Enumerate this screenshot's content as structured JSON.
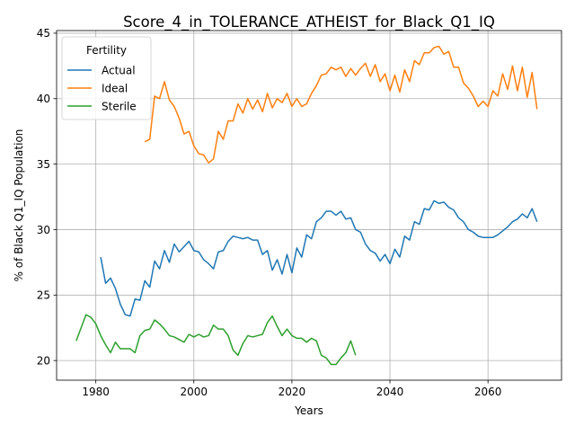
{
  "chart_data": {
    "type": "line",
    "title": "Score_4_in_TOLERANCE_ATHEIST_for_Black_Q1_IQ",
    "xlabel": "Years",
    "ylabel": "% of Black Q1_IQ Population",
    "xlim": [
      1972,
      2075
    ],
    "ylim": [
      18.5,
      45.2
    ],
    "xticks": [
      1980,
      2000,
      2020,
      2040,
      2060
    ],
    "yticks": [
      20,
      25,
      30,
      35,
      40,
      45
    ],
    "grid": true,
    "legend": {
      "title": "Fertility",
      "placement": "top-left"
    },
    "series": [
      {
        "name": "Actual",
        "color": "#1f77b4",
        "points": [
          [
            1981,
            27.9
          ],
          [
            1982,
            25.9
          ],
          [
            1983,
            26.3
          ],
          [
            1984,
            25.5
          ],
          [
            1985,
            24.3
          ],
          [
            1986,
            23.5
          ],
          [
            1987,
            23.4
          ],
          [
            1988,
            24.7
          ],
          [
            1989,
            24.6
          ],
          [
            1990,
            26.1
          ],
          [
            1991,
            25.6
          ],
          [
            1992,
            27.6
          ],
          [
            1993,
            27.0
          ],
          [
            1994,
            28.4
          ],
          [
            1995,
            27.5
          ],
          [
            1996,
            28.9
          ],
          [
            1997,
            28.3
          ],
          [
            1998,
            28.7
          ],
          [
            1999,
            29.1
          ],
          [
            2000,
            28.4
          ],
          [
            2001,
            28.3
          ],
          [
            2002,
            27.7
          ],
          [
            2003,
            27.4
          ],
          [
            2004,
            27.0
          ],
          [
            2005,
            28.3
          ],
          [
            2006,
            28.4
          ],
          [
            2007,
            29.1
          ],
          [
            2008,
            29.5
          ],
          [
            2009,
            29.4
          ],
          [
            2010,
            29.3
          ],
          [
            2011,
            29.4
          ],
          [
            2012,
            29.2
          ],
          [
            2013,
            29.2
          ],
          [
            2014,
            28.1
          ],
          [
            2015,
            28.4
          ],
          [
            2016,
            26.9
          ],
          [
            2017,
            27.7
          ],
          [
            2018,
            26.6
          ],
          [
            2019,
            28.1
          ],
          [
            2020,
            26.7
          ],
          [
            2021,
            28.6
          ],
          [
            2022,
            27.9
          ],
          [
            2023,
            29.6
          ],
          [
            2024,
            29.3
          ],
          [
            2025,
            30.6
          ],
          [
            2026,
            30.9
          ],
          [
            2027,
            31.4
          ],
          [
            2028,
            31.4
          ],
          [
            2029,
            31.1
          ],
          [
            2030,
            31.4
          ],
          [
            2031,
            30.8
          ],
          [
            2032,
            30.9
          ],
          [
            2033,
            30.0
          ],
          [
            2034,
            29.8
          ],
          [
            2035,
            28.9
          ],
          [
            2036,
            28.4
          ],
          [
            2037,
            28.2
          ],
          [
            2038,
            27.6
          ],
          [
            2039,
            28.1
          ],
          [
            2040,
            27.4
          ],
          [
            2041,
            28.5
          ],
          [
            2042,
            27.9
          ],
          [
            2043,
            29.5
          ],
          [
            2044,
            29.2
          ],
          [
            2045,
            30.6
          ],
          [
            2046,
            30.4
          ],
          [
            2047,
            31.6
          ],
          [
            2048,
            31.5
          ],
          [
            2049,
            32.2
          ],
          [
            2050,
            32.0
          ],
          [
            2051,
            32.1
          ],
          [
            2052,
            31.7
          ],
          [
            2053,
            31.5
          ],
          [
            2054,
            30.9
          ],
          [
            2055,
            30.6
          ],
          [
            2056,
            30.0
          ],
          [
            2057,
            29.8
          ],
          [
            2058,
            29.5
          ],
          [
            2059,
            29.4
          ],
          [
            2060,
            29.4
          ],
          [
            2061,
            29.4
          ],
          [
            2062,
            29.6
          ],
          [
            2063,
            29.9
          ],
          [
            2064,
            30.2
          ],
          [
            2065,
            30.6
          ],
          [
            2066,
            30.8
          ],
          [
            2067,
            31.2
          ],
          [
            2068,
            30.9
          ],
          [
            2069,
            31.6
          ],
          [
            2070,
            30.6
          ]
        ]
      },
      {
        "name": "Ideal",
        "color": "#ff7f0e",
        "points": [
          [
            1990,
            36.7
          ],
          [
            1991,
            36.9
          ],
          [
            1992,
            40.2
          ],
          [
            1993,
            40.0
          ],
          [
            1994,
            41.3
          ],
          [
            1995,
            39.9
          ],
          [
            1996,
            39.4
          ],
          [
            1997,
            38.5
          ],
          [
            1998,
            37.3
          ],
          [
            1999,
            37.5
          ],
          [
            2000,
            36.4
          ],
          [
            2001,
            35.8
          ],
          [
            2002,
            35.7
          ],
          [
            2003,
            35.1
          ],
          [
            2004,
            35.4
          ],
          [
            2005,
            37.5
          ],
          [
            2006,
            36.9
          ],
          [
            2007,
            38.3
          ],
          [
            2008,
            38.3
          ],
          [
            2009,
            39.6
          ],
          [
            2010,
            38.9
          ],
          [
            2011,
            40.0
          ],
          [
            2012,
            39.2
          ],
          [
            2013,
            39.9
          ],
          [
            2014,
            39.0
          ],
          [
            2015,
            40.4
          ],
          [
            2016,
            39.3
          ],
          [
            2017,
            40.0
          ],
          [
            2018,
            39.7
          ],
          [
            2019,
            40.4
          ],
          [
            2020,
            39.4
          ],
          [
            2021,
            40.0
          ],
          [
            2022,
            39.4
          ],
          [
            2023,
            39.6
          ],
          [
            2024,
            40.4
          ],
          [
            2025,
            41.0
          ],
          [
            2026,
            41.8
          ],
          [
            2027,
            41.9
          ],
          [
            2028,
            42.4
          ],
          [
            2029,
            42.2
          ],
          [
            2030,
            42.4
          ],
          [
            2031,
            41.7
          ],
          [
            2032,
            42.3
          ],
          [
            2033,
            41.8
          ],
          [
            2034,
            42.3
          ],
          [
            2035,
            42.7
          ],
          [
            2036,
            41.7
          ],
          [
            2037,
            42.6
          ],
          [
            2038,
            41.3
          ],
          [
            2039,
            41.9
          ],
          [
            2040,
            40.6
          ],
          [
            2041,
            41.8
          ],
          [
            2042,
            40.5
          ],
          [
            2043,
            42.2
          ],
          [
            2044,
            41.3
          ],
          [
            2045,
            42.9
          ],
          [
            2046,
            42.6
          ],
          [
            2047,
            43.5
          ],
          [
            2048,
            43.5
          ],
          [
            2049,
            43.9
          ],
          [
            2050,
            44.0
          ],
          [
            2051,
            43.4
          ],
          [
            2052,
            43.6
          ],
          [
            2053,
            42.4
          ],
          [
            2054,
            42.4
          ],
          [
            2055,
            41.2
          ],
          [
            2056,
            40.8
          ],
          [
            2057,
            40.2
          ],
          [
            2058,
            39.4
          ],
          [
            2059,
            39.8
          ],
          [
            2060,
            39.4
          ],
          [
            2061,
            40.6
          ],
          [
            2062,
            40.2
          ],
          [
            2063,
            41.9
          ],
          [
            2064,
            40.7
          ],
          [
            2065,
            42.5
          ],
          [
            2066,
            40.6
          ],
          [
            2067,
            42.4
          ],
          [
            2068,
            40.1
          ],
          [
            2069,
            42.0
          ],
          [
            2070,
            39.2
          ]
        ]
      },
      {
        "name": "Sterile",
        "color": "#2ca02c",
        "points": [
          [
            1976,
            21.5
          ],
          [
            1977,
            22.5
          ],
          [
            1978,
            23.5
          ],
          [
            1979,
            23.3
          ],
          [
            1980,
            22.8
          ],
          [
            1981,
            21.9
          ],
          [
            1982,
            21.2
          ],
          [
            1983,
            20.6
          ],
          [
            1984,
            21.4
          ],
          [
            1985,
            20.9
          ],
          [
            1986,
            20.9
          ],
          [
            1987,
            20.9
          ],
          [
            1988,
            20.6
          ],
          [
            1989,
            21.9
          ],
          [
            1990,
            22.3
          ],
          [
            1991,
            22.4
          ],
          [
            1992,
            23.1
          ],
          [
            1993,
            22.8
          ],
          [
            1994,
            22.4
          ],
          [
            1995,
            21.9
          ],
          [
            1996,
            21.8
          ],
          [
            1997,
            21.6
          ],
          [
            1998,
            21.4
          ],
          [
            1999,
            22.0
          ],
          [
            2000,
            21.8
          ],
          [
            2001,
            22.0
          ],
          [
            2002,
            21.8
          ],
          [
            2003,
            21.9
          ],
          [
            2004,
            22.7
          ],
          [
            2005,
            22.4
          ],
          [
            2006,
            22.4
          ],
          [
            2007,
            21.9
          ],
          [
            2008,
            20.8
          ],
          [
            2009,
            20.4
          ],
          [
            2010,
            21.3
          ],
          [
            2011,
            21.9
          ],
          [
            2012,
            21.8
          ],
          [
            2013,
            21.9
          ],
          [
            2014,
            22.0
          ],
          [
            2015,
            22.9
          ],
          [
            2016,
            23.4
          ],
          [
            2017,
            22.6
          ],
          [
            2018,
            21.9
          ],
          [
            2019,
            22.4
          ],
          [
            2020,
            21.9
          ],
          [
            2021,
            21.7
          ],
          [
            2022,
            21.7
          ],
          [
            2023,
            21.4
          ],
          [
            2024,
            21.7
          ],
          [
            2025,
            21.5
          ],
          [
            2026,
            20.4
          ],
          [
            2027,
            20.2
          ],
          [
            2028,
            19.7
          ],
          [
            2029,
            19.7
          ],
          [
            2030,
            20.2
          ],
          [
            2031,
            20.6
          ],
          [
            2032,
            21.5
          ],
          [
            2033,
            20.4
          ]
        ]
      }
    ]
  }
}
